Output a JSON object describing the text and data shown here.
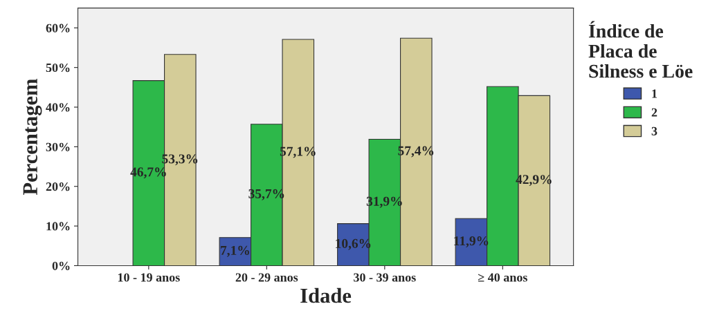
{
  "chart_data": {
    "type": "bar",
    "xlabel": "Idade",
    "ylabel": "Percentagem",
    "legend_title": "Índice de\nPlaca de\nSilness e Löe",
    "categories": [
      "10 - 19 anos",
      "20 - 29 anos",
      "30 - 39 anos",
      "≥ 40 anos"
    ],
    "series": [
      {
        "name": "1",
        "color": "#3e58ac",
        "values": [
          0,
          7.1,
          10.6,
          11.9
        ],
        "value_labels": [
          null,
          "7,1%",
          "10,6%",
          "11,9%"
        ]
      },
      {
        "name": "2",
        "color": "#2db84a",
        "values": [
          46.7,
          35.7,
          31.9,
          45.2
        ],
        "value_labels": [
          "46,7%",
          "35,7%",
          "31,9%",
          null
        ]
      },
      {
        "name": "3",
        "color": "#d4cc98",
        "values": [
          53.3,
          57.1,
          57.4,
          42.9
        ],
        "value_labels": [
          "53,3%",
          "57,1%",
          "57,4%",
          "42,9%"
        ]
      }
    ],
    "ylim": [
      0,
      65
    ],
    "yticks": [
      {
        "value": 0,
        "label": "0%"
      },
      {
        "value": 10,
        "label": "10%"
      },
      {
        "value": 20,
        "label": "20%"
      },
      {
        "value": 30,
        "label": "30%"
      },
      {
        "value": 40,
        "label": "40%"
      },
      {
        "value": 50,
        "label": "50%"
      },
      {
        "value": 60,
        "label": "60%"
      }
    ],
    "legend": "right",
    "grid": false
  }
}
